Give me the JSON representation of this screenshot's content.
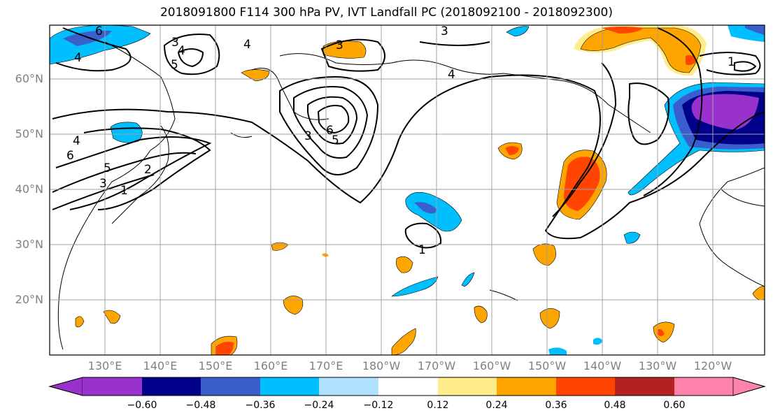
{
  "title": "2018091800 F114 300 hPa PV, IVT Landfall PC (2018092100 - 2018092300)",
  "lat_labels": [
    "60°N",
    "50°N",
    "40°N",
    "30°N",
    "20°N"
  ],
  "lon_labels": [
    "130°E",
    "140°E",
    "150°E",
    "160°E",
    "170°E",
    "180°W",
    "170°W",
    "160°W",
    "150°W",
    "140°W",
    "130°W",
    "120°W"
  ],
  "colorbar": {
    "ticks": [
      "−0.60",
      "−0.48",
      "−0.36",
      "−0.24",
      "−0.12",
      "0.12",
      "0.24",
      "0.36",
      "0.48",
      "0.60"
    ],
    "colors": [
      "#9932CC",
      "#00008B",
      "#3A5FCD",
      "#00BFFF",
      "#B0E2FF",
      "#FFFFFF",
      "#FFEC8B",
      "#FFA500",
      "#FF4500",
      "#B22222",
      "#FF82AB"
    ]
  },
  "contour_labels": [
    "3",
    "4",
    "5",
    "3",
    "4",
    "3",
    "4",
    "6",
    "3",
    "6",
    "5",
    "4",
    "2",
    "5",
    "1",
    "3",
    "6",
    "4",
    "1",
    "1"
  ],
  "colors": {
    "frame": "#000000",
    "grid": "#a0a0a0",
    "tick_text": "#808080",
    "contour": "#000000"
  }
}
